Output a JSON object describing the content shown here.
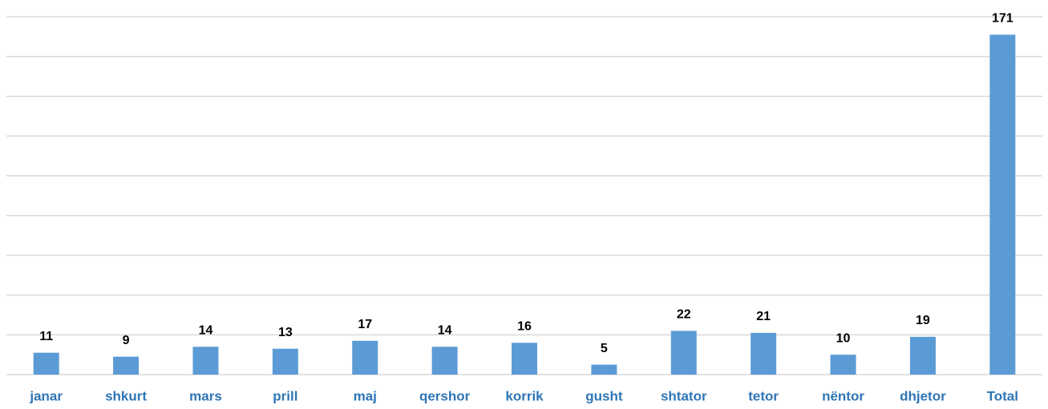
{
  "chart_data": {
    "type": "bar",
    "categories": [
      "janar",
      "shkurt",
      "mars",
      "prill",
      "maj",
      "qershor",
      "korrik",
      "gusht",
      "shtator",
      "tetor",
      "nëntor",
      "dhjetor",
      "Total"
    ],
    "values": [
      11,
      9,
      14,
      13,
      17,
      14,
      16,
      5,
      22,
      21,
      10,
      19,
      171
    ],
    "color": "#5b9bd5",
    "ylim": [
      0,
      180
    ],
    "yticks": [
      0,
      20,
      40,
      60,
      80,
      100,
      120,
      140,
      160,
      180
    ],
    "grid": true
  }
}
